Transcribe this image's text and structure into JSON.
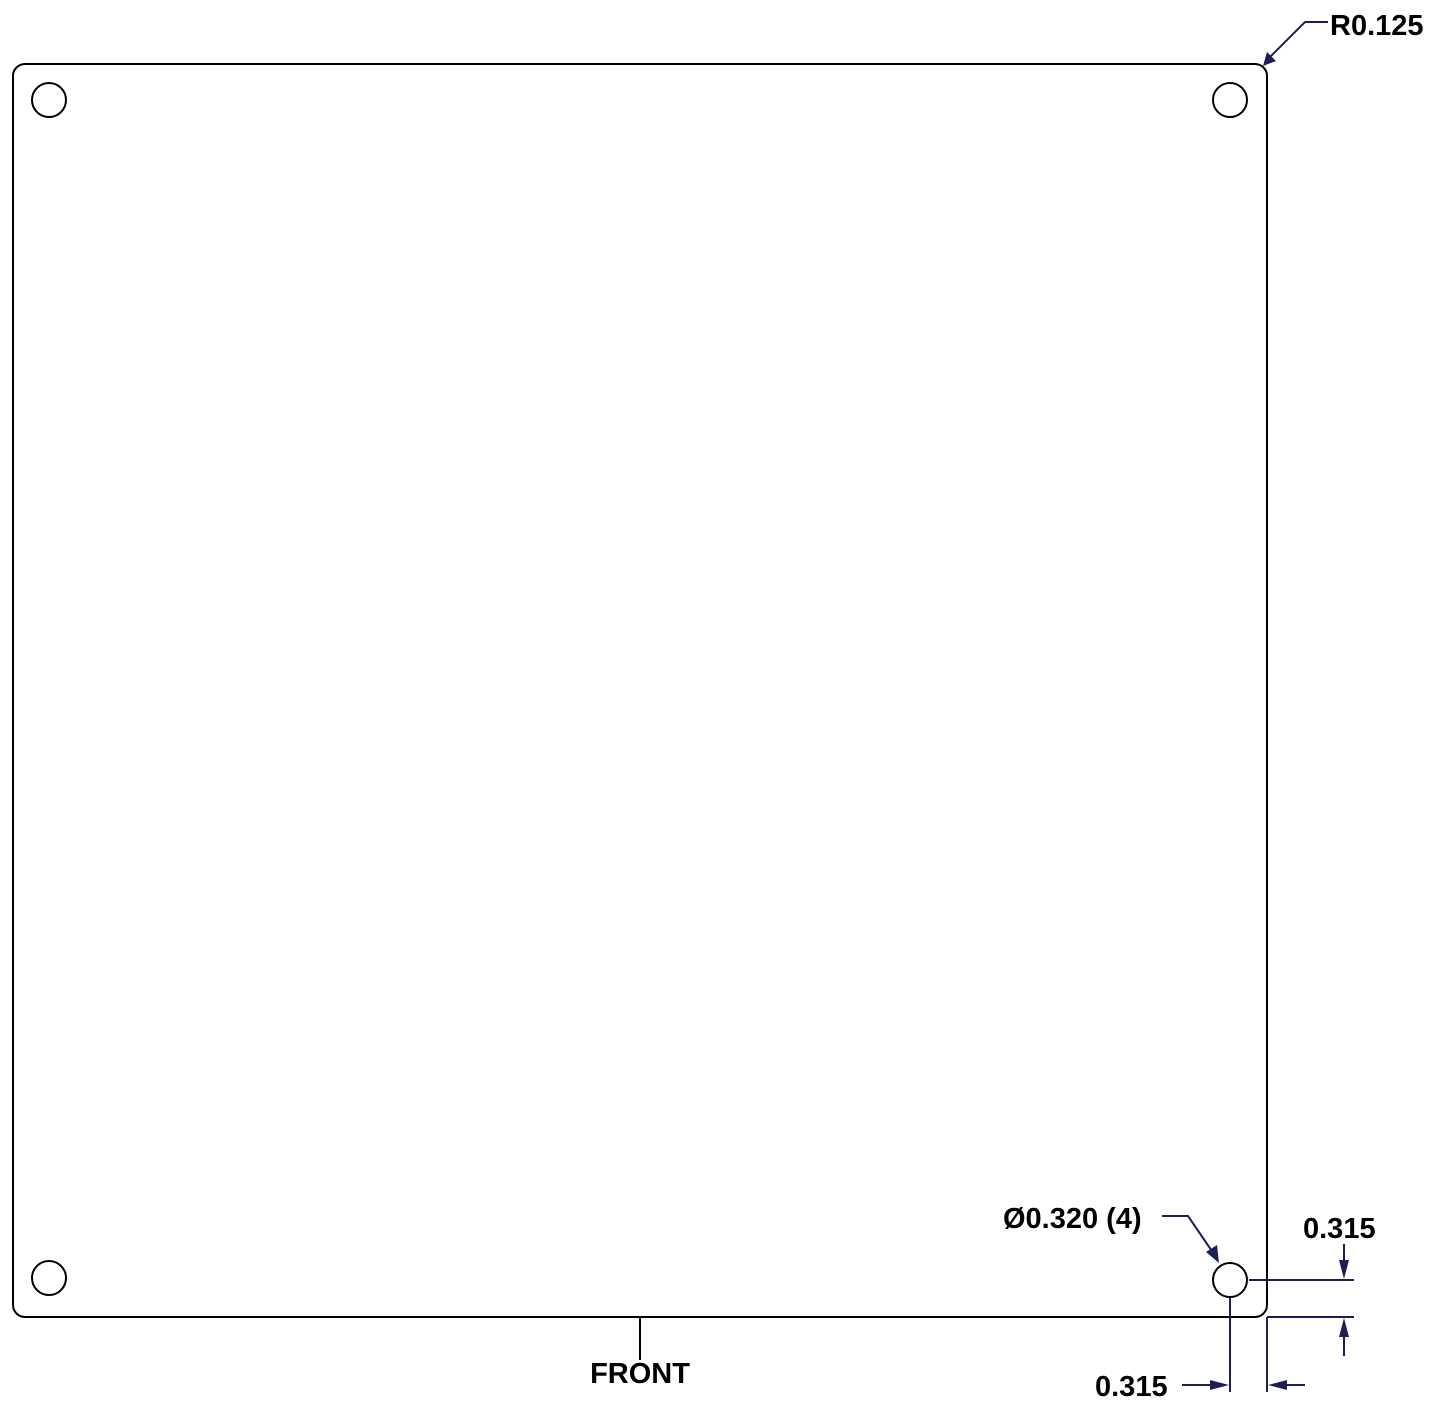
{
  "drawing": {
    "corner_radius_callout": "R0.125",
    "hole_callout": "Ø0.320 (4)",
    "vertical_edge_offset": "0.315",
    "horizontal_edge_offset": "0.315",
    "front_label": "FRONT"
  },
  "colors": {
    "outline": "#000000",
    "dimension_lines": "#1c1f55",
    "background": "#ffffff"
  }
}
